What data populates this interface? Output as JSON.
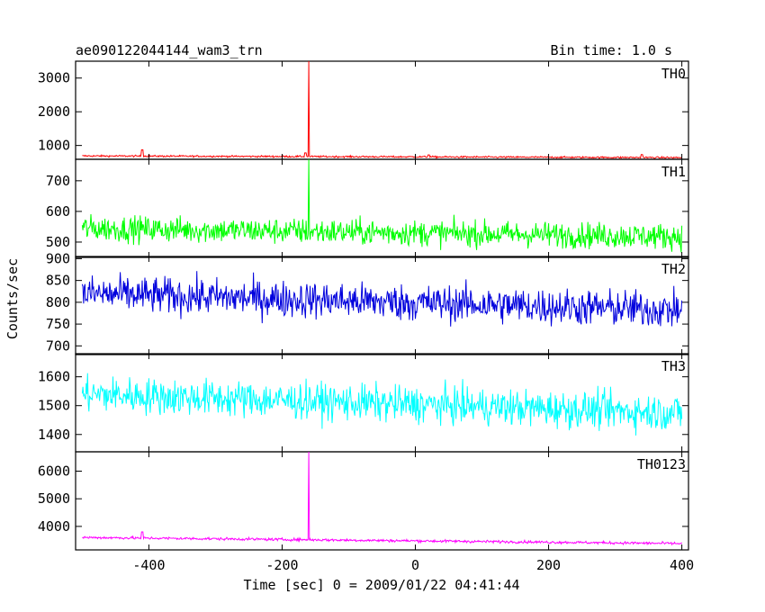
{
  "header": {
    "title": "ae090122044144_wam3_trn",
    "bin_time": "Bin time: 1.0 s"
  },
  "axis": {
    "ylabel": "Counts/sec",
    "xlabel": "Time [sec] 0 = 2009/01/22 04:41:44"
  },
  "chart_data": {
    "type": "line",
    "x_range": [
      -510,
      410
    ],
    "x_ticks": [
      -400,
      -200,
      0,
      200,
      400
    ],
    "x_data_range": [
      -500,
      400
    ],
    "burst_time": -160,
    "panels": [
      {
        "name": "TH0",
        "color": "#ff0000",
        "ylim": [
          590,
          3500
        ],
        "yticks": [
          1000,
          2000,
          3000
        ],
        "base_start": 690,
        "base_end": 640,
        "noise": 18,
        "spike_top": 3500,
        "bumps": [
          {
            "t": -410,
            "v": 870
          },
          {
            "t": -165,
            "v": 780
          },
          {
            "t": 20,
            "v": 720
          },
          {
            "t": 340,
            "v": 730
          }
        ]
      },
      {
        "name": "TH1",
        "color": "#00ff00",
        "ylim": [
          450,
          770
        ],
        "yticks": [
          500,
          600,
          700
        ],
        "base_start": 545,
        "base_end": 518,
        "noise": 30,
        "spike_top": 770,
        "bumps": []
      },
      {
        "name": "TH2",
        "color": "#0000dd",
        "ylim": [
          680,
          905
        ],
        "yticks": [
          700,
          750,
          800,
          850,
          900
        ],
        "base_start": 820,
        "base_end": 782,
        "noise": 30,
        "spike_top": null,
        "bumps": []
      },
      {
        "name": "TH3",
        "color": "#00ffff",
        "ylim": [
          1340,
          1680
        ],
        "yticks": [
          1400,
          1500,
          1600
        ],
        "base_start": 1540,
        "base_end": 1475,
        "noise": 45,
        "spike_top": null,
        "bumps": []
      },
      {
        "name": "TH0123",
        "color": "#ff00ff",
        "ylim": [
          3150,
          6700
        ],
        "yticks": [
          4000,
          5000,
          6000
        ],
        "base_start": 3600,
        "base_end": 3380,
        "noise": 35,
        "spike_top": 6700,
        "bumps": [
          {
            "t": -410,
            "v": 3800
          }
        ]
      }
    ]
  }
}
